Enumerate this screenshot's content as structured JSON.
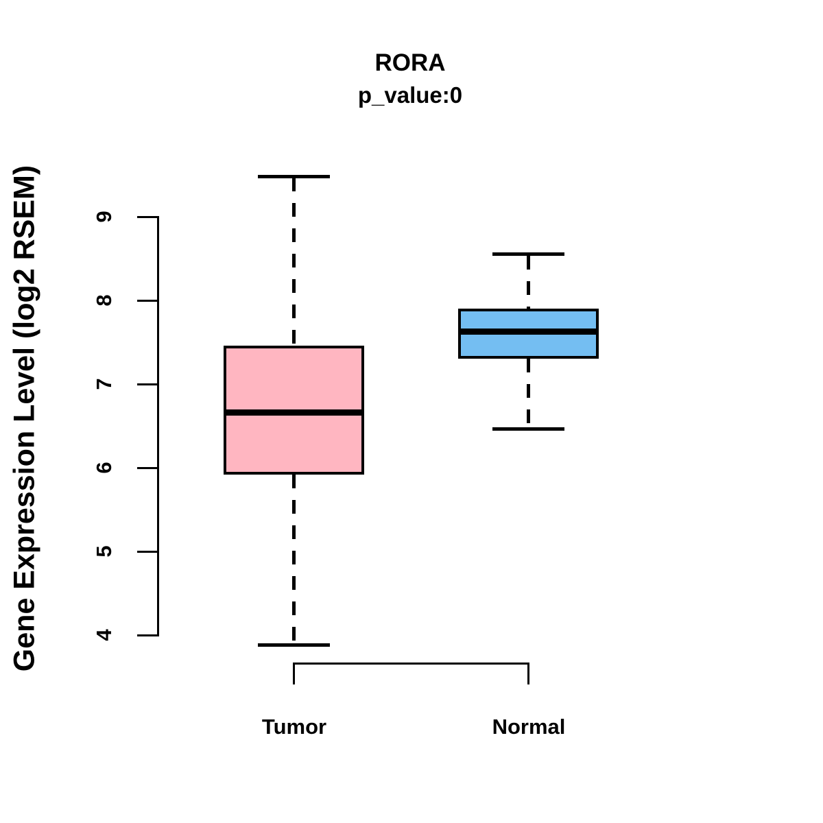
{
  "title": "RORA",
  "subtitle": "p_value:0",
  "chart_data": {
    "type": "boxplot",
    "title": "RORA",
    "subtitle": "p_value:0",
    "ylabel": "Gene Expression Level (log2 RSEM)",
    "xlabel": "",
    "categories": [
      "Tumor",
      "Normal"
    ],
    "yticks": [
      4,
      5,
      6,
      7,
      8,
      9
    ],
    "ylim": [
      3.7,
      9.6
    ],
    "grid": false,
    "legend": "none",
    "series": [
      {
        "name": "Tumor",
        "color": "#FFB6C1",
        "whisker_low": 3.88,
        "q1": 5.92,
        "median": 6.66,
        "q3": 7.46,
        "whisker_high": 9.48
      },
      {
        "name": "Normal",
        "color": "#74BEF2",
        "whisker_low": 6.46,
        "q1": 7.3,
        "median": 7.63,
        "q3": 7.9,
        "whisker_high": 8.55
      }
    ],
    "colors": {
      "box_border": "#000000",
      "median_line": "#000000",
      "axis": "#000000",
      "background": "#ffffff"
    }
  }
}
